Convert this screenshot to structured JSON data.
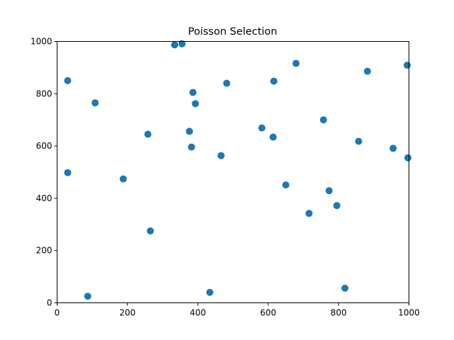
{
  "chart_data": {
    "type": "scatter",
    "title": "Poisson Selection",
    "xlabel": "",
    "ylabel": "",
    "xlim": [
      0,
      1000
    ],
    "ylim": [
      0,
      1000
    ],
    "xticks": [
      0,
      200,
      400,
      600,
      800,
      1000
    ],
    "yticks": [
      0,
      200,
      400,
      600,
      800,
      1000
    ],
    "grid": false,
    "legend": "none",
    "marker_color": "#1f77b4",
    "points": [
      {
        "x": 30,
        "y": 850
      },
      {
        "x": 30,
        "y": 498
      },
      {
        "x": 87,
        "y": 25
      },
      {
        "x": 108,
        "y": 765
      },
      {
        "x": 188,
        "y": 474
      },
      {
        "x": 258,
        "y": 645
      },
      {
        "x": 265,
        "y": 275
      },
      {
        "x": 334,
        "y": 987
      },
      {
        "x": 355,
        "y": 991
      },
      {
        "x": 376,
        "y": 656
      },
      {
        "x": 382,
        "y": 596
      },
      {
        "x": 386,
        "y": 805
      },
      {
        "x": 393,
        "y": 762
      },
      {
        "x": 434,
        "y": 40
      },
      {
        "x": 466,
        "y": 563
      },
      {
        "x": 482,
        "y": 840
      },
      {
        "x": 582,
        "y": 669
      },
      {
        "x": 614,
        "y": 634
      },
      {
        "x": 616,
        "y": 848
      },
      {
        "x": 650,
        "y": 451
      },
      {
        "x": 679,
        "y": 916
      },
      {
        "x": 716,
        "y": 342
      },
      {
        "x": 757,
        "y": 700
      },
      {
        "x": 773,
        "y": 429
      },
      {
        "x": 795,
        "y": 372
      },
      {
        "x": 818,
        "y": 56
      },
      {
        "x": 857,
        "y": 618
      },
      {
        "x": 882,
        "y": 886
      },
      {
        "x": 955,
        "y": 591
      },
      {
        "x": 995,
        "y": 909
      },
      {
        "x": 997,
        "y": 555
      }
    ]
  }
}
